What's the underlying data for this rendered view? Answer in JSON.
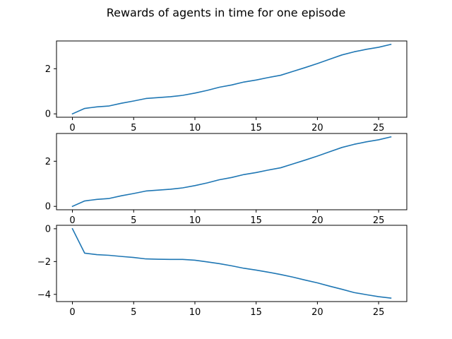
{
  "chart_data": {
    "type": "line",
    "title": "Rewards of agents in time for one episode",
    "line_color": "#1f77b4",
    "subplots": [
      {
        "x": [
          0,
          1,
          2,
          3,
          4,
          5,
          6,
          7,
          8,
          9,
          10,
          11,
          12,
          13,
          14,
          15,
          16,
          17,
          18,
          19,
          20,
          21,
          22,
          23,
          24,
          25,
          26
        ],
        "y": [
          0.0,
          0.24,
          0.31,
          0.35,
          0.47,
          0.57,
          0.68,
          0.72,
          0.76,
          0.82,
          0.92,
          1.04,
          1.18,
          1.28,
          1.41,
          1.5,
          1.61,
          1.71,
          1.88,
          2.05,
          2.23,
          2.42,
          2.61,
          2.75,
          2.86,
          2.95,
          3.08
        ],
        "xlim": [
          -1.3,
          27.3
        ],
        "ylim": [
          -0.15,
          3.23
        ],
        "xticks": [
          0,
          5,
          10,
          15,
          20,
          25
        ],
        "yticks": [
          0,
          2
        ],
        "xtick_labels": [
          "0",
          "5",
          "10",
          "15",
          "20",
          "25"
        ],
        "ytick_labels": [
          "0",
          "2"
        ]
      },
      {
        "x": [
          0,
          1,
          2,
          3,
          4,
          5,
          6,
          7,
          8,
          9,
          10,
          11,
          12,
          13,
          14,
          15,
          16,
          17,
          18,
          19,
          20,
          21,
          22,
          23,
          24,
          25,
          26
        ],
        "y": [
          0.0,
          0.24,
          0.31,
          0.35,
          0.47,
          0.57,
          0.68,
          0.72,
          0.76,
          0.82,
          0.92,
          1.04,
          1.18,
          1.28,
          1.41,
          1.5,
          1.61,
          1.71,
          1.88,
          2.05,
          2.23,
          2.42,
          2.61,
          2.75,
          2.86,
          2.95,
          3.08
        ],
        "xlim": [
          -1.3,
          27.3
        ],
        "ylim": [
          -0.15,
          3.23
        ],
        "xticks": [
          0,
          5,
          10,
          15,
          20,
          25
        ],
        "yticks": [
          0,
          2
        ],
        "xtick_labels": [
          "0",
          "5",
          "10",
          "15",
          "20",
          "25"
        ],
        "ytick_labels": [
          "0",
          "2"
        ]
      },
      {
        "x": [
          0,
          1,
          2,
          3,
          4,
          5,
          6,
          7,
          8,
          9,
          10,
          11,
          12,
          13,
          14,
          15,
          16,
          17,
          18,
          19,
          20,
          21,
          22,
          23,
          24,
          25,
          26
        ],
        "y": [
          0.0,
          -1.49,
          -1.58,
          -1.62,
          -1.69,
          -1.75,
          -1.84,
          -1.86,
          -1.87,
          -1.87,
          -1.92,
          -2.02,
          -2.13,
          -2.26,
          -2.41,
          -2.52,
          -2.65,
          -2.79,
          -2.95,
          -3.13,
          -3.3,
          -3.5,
          -3.69,
          -3.89,
          -4.02,
          -4.14,
          -4.23
        ],
        "xlim": [
          -1.3,
          27.3
        ],
        "ylim": [
          -4.44,
          0.21
        ],
        "xticks": [
          0,
          5,
          10,
          15,
          20,
          25
        ],
        "yticks": [
          0,
          -2,
          -4
        ],
        "xtick_labels": [
          "0",
          "5",
          "10",
          "15",
          "20",
          "25"
        ],
        "ytick_labels": [
          "0",
          "−2",
          "−4"
        ]
      }
    ]
  }
}
